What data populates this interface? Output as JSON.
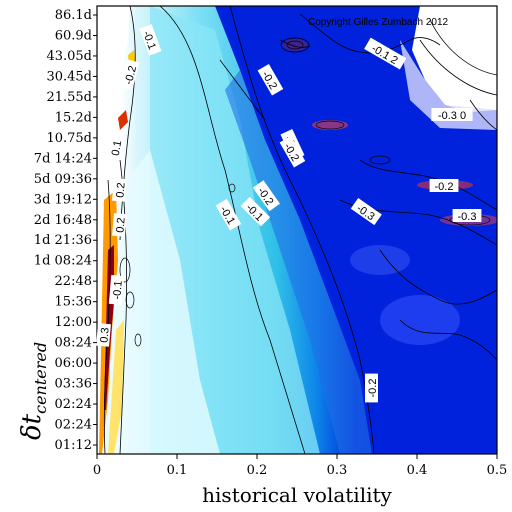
{
  "chart_data": {
    "type": "heatmap",
    "title": "",
    "copyright": "Copyright Gilles Zumbach 2012",
    "xlabel": "historical volatility",
    "ylabel_main": "δt",
    "ylabel_sub": "centered",
    "xlim": [
      0,
      0.5
    ],
    "x_ticks": [
      "0",
      "0.1",
      "0.2",
      "0.3",
      "0.4",
      "0.5"
    ],
    "y_ticks": [
      "01:12",
      "02:24",
      "02:24",
      "03:36",
      "06:00",
      "08:24",
      "12:00",
      "15:36",
      "22:48",
      "1d 08:24",
      "1d 21:36",
      "2d 16:48",
      "3d 19:12",
      "5d 09:36",
      "7d 14:24",
      "10.75d",
      "15.2d",
      "21.55d",
      "30.45d",
      "43.05d",
      "60.9d",
      "86.1d"
    ],
    "contour_labels": [
      "-0.1",
      "-0.1",
      "-0.2",
      "-0.2",
      "-0.1",
      "-0.2",
      "0.1",
      "0.2",
      "0.2",
      "0.3",
      "-0.1",
      "-0.1",
      "-0.2",
      "-0.3",
      "-0.2",
      "-0.3",
      "-0.1 2",
      "-0.3 0",
      "-0.2"
    ],
    "colors": {
      "high_positive": "#7a0010",
      "positive": "#ffb000",
      "zero": "#ffffff",
      "mild_negative": "#22c8ee",
      "negative": "#0020dd",
      "missing": "#ffffff"
    }
  }
}
